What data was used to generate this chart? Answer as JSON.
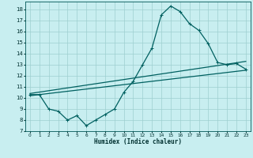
{
  "xlabel": "Humidex (Indice chaleur)",
  "bg_color": "#c8eef0",
  "grid_color": "#9ecfcf",
  "line_color": "#006060",
  "xlim": [
    -0.5,
    23.5
  ],
  "ylim": [
    7,
    18.7
  ],
  "xticks": [
    0,
    1,
    2,
    3,
    4,
    5,
    6,
    7,
    8,
    9,
    10,
    11,
    12,
    13,
    14,
    15,
    16,
    17,
    18,
    19,
    20,
    21,
    22,
    23
  ],
  "yticks": [
    7,
    8,
    9,
    10,
    11,
    12,
    13,
    14,
    15,
    16,
    17,
    18
  ],
  "line1_x": [
    0,
    1,
    2,
    3,
    4,
    5,
    6,
    7,
    8,
    9,
    10,
    11,
    12,
    13,
    14,
    15,
    16,
    17,
    18,
    19,
    20,
    21,
    22,
    23
  ],
  "line1_y": [
    10.3,
    10.3,
    9.0,
    8.8,
    8.0,
    8.4,
    7.5,
    8.0,
    8.5,
    9.0,
    10.5,
    11.5,
    13.0,
    14.5,
    17.5,
    18.3,
    17.8,
    16.7,
    16.1,
    14.9,
    13.2,
    13.0,
    13.1,
    12.6
  ],
  "line2_x": [
    0,
    23
  ],
  "line2_y": [
    10.4,
    13.3
  ],
  "line3_x": [
    0,
    23
  ],
  "line3_y": [
    10.2,
    12.5
  ],
  "marker_size": 2.5,
  "linewidth": 0.9
}
